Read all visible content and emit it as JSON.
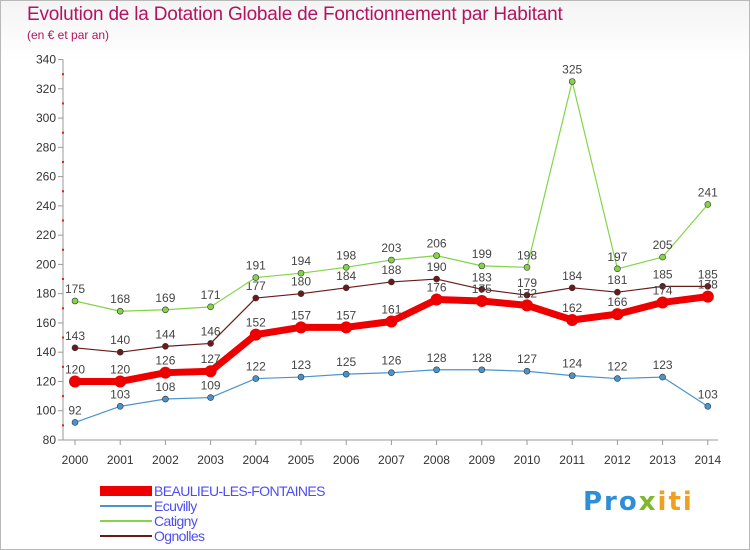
{
  "title": "Evolution de la Dotation Globale de Fonctionnement par Habitant",
  "subtitle": "(en € et par an)",
  "logo": {
    "part1": "Pro",
    "part2": "x",
    "part3": "iti"
  },
  "chart_data": {
    "type": "line",
    "title": "Evolution de la Dotation Globale de Fonctionnement par Habitant",
    "subtitle": "(en € et par an)",
    "xlabel": "",
    "ylabel": "",
    "x": [
      "2000",
      "2001",
      "2002",
      "2003",
      "2004",
      "2005",
      "2006",
      "2007",
      "2008",
      "2009",
      "2010",
      "2011",
      "2012",
      "2013",
      "2014"
    ],
    "ylim": [
      80,
      340
    ],
    "yticks": [
      80,
      100,
      120,
      140,
      160,
      180,
      200,
      220,
      240,
      260,
      280,
      300,
      320,
      340
    ],
    "grid": false,
    "legend_position": "bottom-left",
    "series": [
      {
        "name": "Ognolles",
        "color": "#6b1a1a",
        "width": 1.2,
        "marker": 3,
        "values": [
          143,
          140,
          144,
          146,
          177,
          180,
          184,
          188,
          190,
          183,
          179,
          184,
          181,
          185,
          185
        ]
      },
      {
        "name": "Catigny",
        "color": "#84d44a",
        "width": 1.2,
        "marker": 3,
        "values": [
          175,
          168,
          169,
          171,
          191,
          194,
          198,
          203,
          206,
          199,
          198,
          325,
          197,
          205,
          241
        ]
      },
      {
        "name": "Ecuvilly",
        "color": "#4a94cc",
        "width": 1.2,
        "marker": 3,
        "values": [
          92,
          103,
          108,
          109,
          122,
          123,
          125,
          126,
          128,
          128,
          127,
          124,
          122,
          123,
          103
        ]
      },
      {
        "name": "BEAULIEU-LES-FONTAINES",
        "color": "#ee0000",
        "width": 7,
        "marker": 6,
        "values": [
          120,
          120,
          126,
          127,
          152,
          157,
          157,
          161,
          176,
          175,
          172,
          162,
          166,
          174,
          178
        ]
      }
    ],
    "legend_order": [
      "BEAULIEU-LES-FONTAINES",
      "Ecuvilly",
      "Catigny",
      "Ognolles"
    ]
  }
}
